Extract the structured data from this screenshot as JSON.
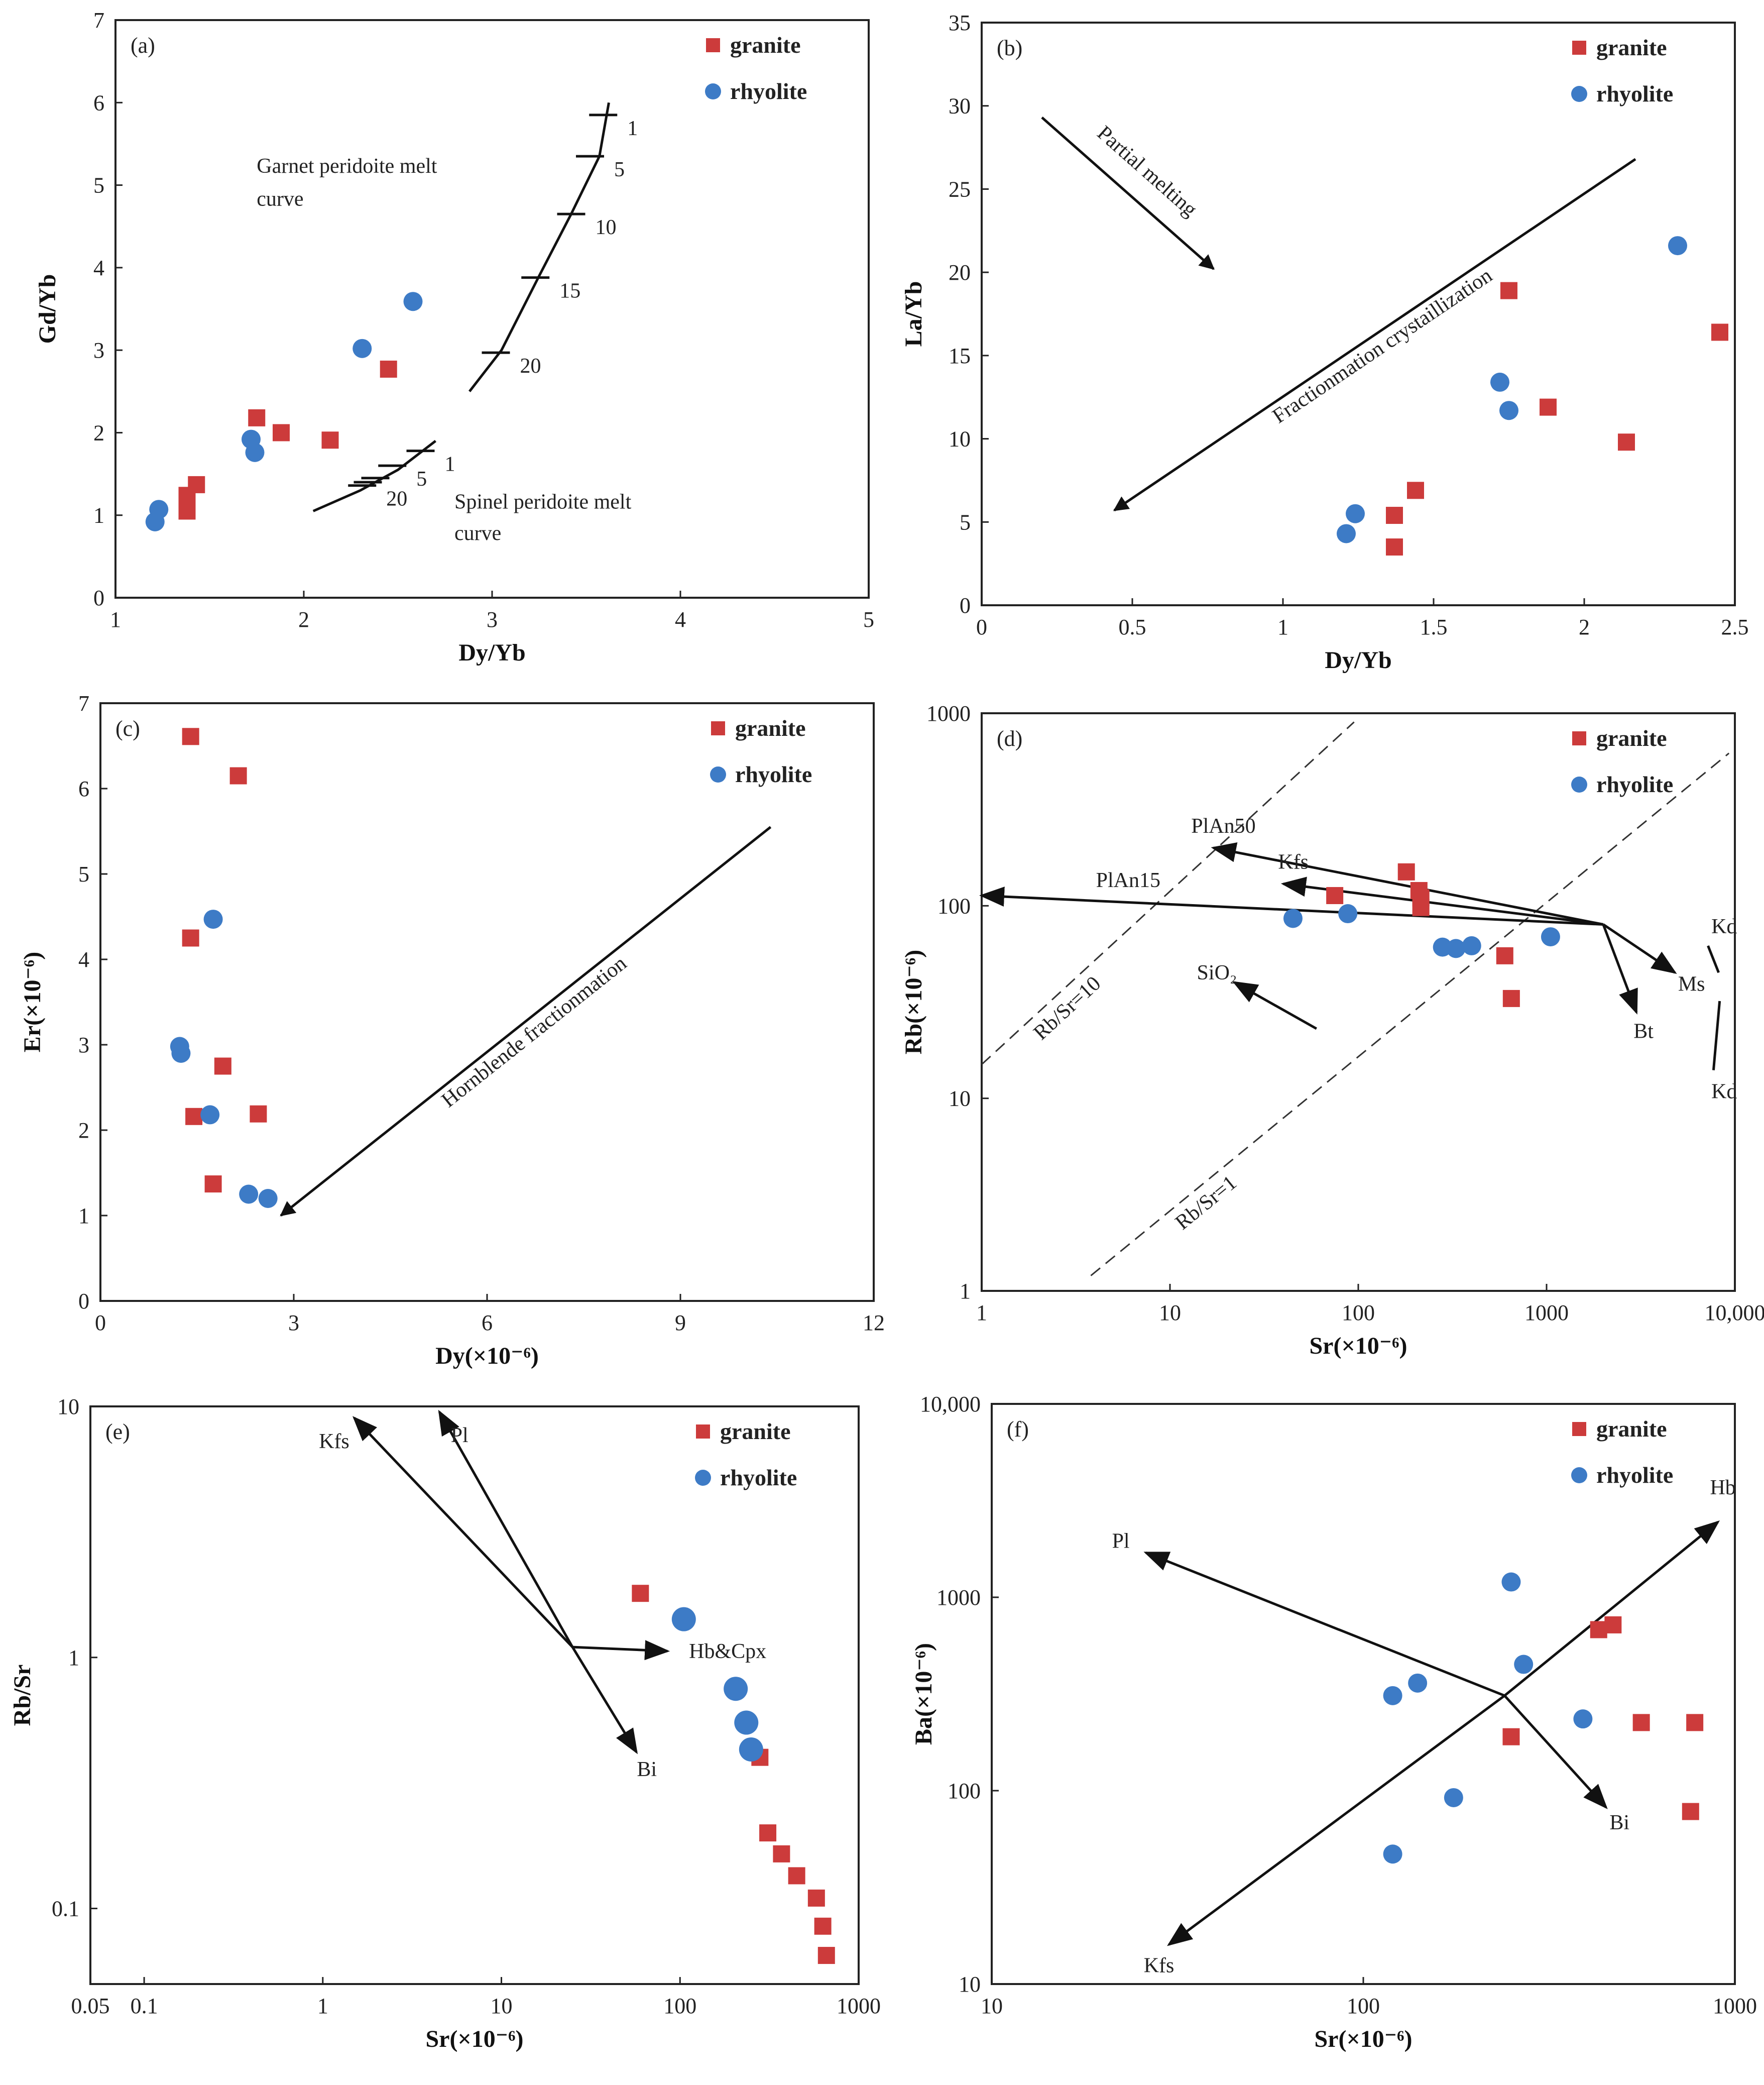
{
  "chart_data": [
    {
      "id": "a",
      "type": "scatter",
      "panel_label": "(a)",
      "xlabel": "Dy/Yb",
      "ylabel": "Gd/Yb",
      "xscale": "linear",
      "yscale": "linear",
      "xlim": [
        1,
        5
      ],
      "ylim": [
        0,
        7
      ],
      "xticks": [
        1,
        2,
        3,
        4,
        5
      ],
      "yticks": [
        0,
        1,
        2,
        3,
        4,
        5,
        6,
        7
      ],
      "legend_placement": "top-right",
      "series": [
        {
          "name": "granite",
          "marker": "square",
          "color": "#cc3b3b",
          "points": [
            [
              1.38,
              1.05
            ],
            [
              1.38,
              1.24
            ],
            [
              1.43,
              1.37
            ],
            [
              1.75,
              2.18
            ],
            [
              1.88,
              2.0
            ],
            [
              2.14,
              1.91
            ],
            [
              2.45,
              2.77
            ]
          ]
        },
        {
          "name": "rhyolite",
          "marker": "circle",
          "color": "#3d7bc6",
          "points": [
            [
              1.21,
              0.92
            ],
            [
              1.23,
              1.07
            ],
            [
              1.72,
              1.92
            ],
            [
              1.74,
              1.76
            ],
            [
              2.31,
              3.02
            ],
            [
              2.58,
              3.59
            ]
          ]
        }
      ],
      "curves": [
        {
          "points": [
            [
              2.88,
              2.5
            ],
            [
              3.05,
              3.0
            ],
            [
              3.25,
              3.9
            ],
            [
              3.42,
              4.65
            ],
            [
              3.57,
              5.35
            ],
            [
              3.62,
              6.0
            ]
          ],
          "ticks": [
            {
              "label": "1",
              "x": 3.59,
              "y": 5.85
            },
            {
              "label": "5",
              "x": 3.52,
              "y": 5.35
            },
            {
              "label": "10",
              "x": 3.42,
              "y": 4.65
            },
            {
              "label": "15",
              "x": 3.23,
              "y": 3.88
            },
            {
              "label": "20",
              "x": 3.02,
              "y": 2.97
            }
          ]
        },
        {
          "points": [
            [
              2.05,
              1.05
            ],
            [
              2.3,
              1.3
            ],
            [
              2.5,
              1.55
            ],
            [
              2.7,
              1.9
            ]
          ],
          "ticks": [
            {
              "label": "1",
              "x": 2.62,
              "y": 1.78
            },
            {
              "label": "5",
              "x": 2.47,
              "y": 1.6
            },
            {
              "label": "",
              "x": 2.38,
              "y": 1.45
            },
            {
              "label": "",
              "x": 2.34,
              "y": 1.4
            },
            {
              "label": "20",
              "x": 2.31,
              "y": 1.36
            }
          ]
        }
      ],
      "annotations": [
        {
          "text": "Garnet peridoite melt",
          "x": 1.75,
          "y": 5.15
        },
        {
          "text": "curve",
          "x": 1.75,
          "y": 4.75
        },
        {
          "text": "Spinel peridoite melt",
          "x": 2.8,
          "y": 1.08
        },
        {
          "text": "curve",
          "x": 2.8,
          "y": 0.7
        }
      ]
    },
    {
      "id": "b",
      "type": "scatter",
      "panel_label": "(b)",
      "xlabel": "Dy/Yb",
      "ylabel": "La/Yb",
      "xscale": "linear",
      "yscale": "linear",
      "xlim": [
        0,
        2.5
      ],
      "ylim": [
        0,
        35
      ],
      "xticks": [
        0,
        0.5,
        1,
        1.5,
        2,
        2.5
      ],
      "yticks": [
        0,
        5,
        10,
        15,
        20,
        25,
        30,
        35
      ],
      "legend_placement": "top-right",
      "series": [
        {
          "name": "granite",
          "marker": "square",
          "color": "#cc3b3b",
          "points": [
            [
              1.37,
              3.5
            ],
            [
              1.37,
              5.4
            ],
            [
              1.44,
              6.9
            ],
            [
              1.75,
              18.9
            ],
            [
              1.88,
              11.9
            ],
            [
              2.14,
              9.8
            ],
            [
              2.45,
              16.4
            ]
          ]
        },
        {
          "name": "rhyolite",
          "marker": "circle",
          "color": "#3d7bc6",
          "points": [
            [
              1.21,
              4.3
            ],
            [
              1.24,
              5.5
            ],
            [
              1.72,
              13.4
            ],
            [
              1.75,
              11.7
            ],
            [
              2.31,
              21.6
            ]
          ]
        }
      ],
      "arrows": [
        {
          "label": "Partial melting",
          "from": [
            0.2,
            29.3
          ],
          "to": [
            0.77,
            20.2
          ]
        },
        {
          "label": "Fractionmation  crystaillization",
          "from": [
            2.17,
            26.8
          ],
          "to": [
            0.44,
            5.7
          ]
        }
      ]
    },
    {
      "id": "c",
      "type": "scatter",
      "panel_label": "(c)",
      "xlabel": "Dy(×10⁻⁶)",
      "ylabel": "Er(×10⁻⁶)",
      "xscale": "linear",
      "yscale": "linear",
      "xlim": [
        0,
        12
      ],
      "ylim": [
        0,
        7
      ],
      "xticks": [
        0,
        3,
        6,
        9,
        12
      ],
      "yticks": [
        0,
        1,
        2,
        3,
        4,
        5,
        6,
        7
      ],
      "legend_placement": "top-right",
      "series": [
        {
          "name": "granite",
          "marker": "square",
          "color": "#cc3b3b",
          "points": [
            [
              1.4,
              6.61
            ],
            [
              2.14,
              6.15
            ],
            [
              1.4,
              4.25
            ],
            [
              1.9,
              2.75
            ],
            [
              1.45,
              2.16
            ],
            [
              2.45,
              2.19
            ],
            [
              1.75,
              1.37
            ]
          ]
        },
        {
          "name": "rhyolite",
          "marker": "circle",
          "color": "#3d7bc6",
          "points": [
            [
              1.75,
              4.47
            ],
            [
              1.23,
              2.98
            ],
            [
              1.25,
              2.9
            ],
            [
              1.7,
              2.18
            ],
            [
              2.3,
              1.25
            ],
            [
              2.6,
              1.2
            ]
          ]
        }
      ],
      "arrows": [
        {
          "label": "Hornblende  fractionmation",
          "from": [
            10.4,
            5.55
          ],
          "to": [
            2.8,
            1.0
          ]
        }
      ]
    },
    {
      "id": "d",
      "type": "scatter",
      "panel_label": "(d)",
      "xlabel": "Sr(×10⁻⁶)",
      "ylabel": "Rb(×10⁻⁶)",
      "xscale": "log",
      "yscale": "log",
      "xlim": [
        1,
        10000
      ],
      "ylim": [
        1,
        1000
      ],
      "xticks": [
        1,
        10,
        100,
        1000,
        10000
      ],
      "xticklabels": [
        "1",
        "10",
        "100",
        "1000",
        "10,000"
      ],
      "yticks": [
        1,
        10,
        100,
        1000
      ],
      "yticklabels": [
        "1",
        "10",
        "100",
        "1000"
      ],
      "legend_placement": "top-right",
      "series": [
        {
          "name": "granite",
          "marker": "square",
          "color": "#cc3b3b",
          "points": [
            [
              75,
              113
            ],
            [
              180,
              150
            ],
            [
              210,
              120
            ],
            [
              215,
              110
            ],
            [
              215,
              98
            ],
            [
              600,
              55
            ],
            [
              650,
              33
            ]
          ]
        },
        {
          "name": "rhyolite",
          "marker": "circle",
          "color": "#3d7bc6",
          "points": [
            [
              45,
              86
            ],
            [
              88,
              91
            ],
            [
              280,
              61
            ],
            [
              330,
              60
            ],
            [
              400,
              62
            ],
            [
              1050,
              69
            ]
          ]
        }
      ],
      "dashed_lines": [
        {
          "label": "Rb/Sr=10",
          "from": [
            1,
            15
          ],
          "to": [
            95,
            900
          ]
        },
        {
          "label": "Rb/Sr=1",
          "from": [
            3.8,
            1.2
          ],
          "to": [
            9300,
            620
          ]
        }
      ],
      "vectors": [
        {
          "label": "PlAn15",
          "from": [
            2000,
            80
          ],
          "to": [
            1,
            113
          ]
        },
        {
          "label": "PlAn50",
          "from": [
            2000,
            80
          ],
          "to": [
            17,
            200
          ]
        },
        {
          "label": "Kfs",
          "from": [
            2000,
            80
          ],
          "to": [
            40,
            130
          ]
        },
        {
          "label": "Ms",
          "from": [
            2000,
            80
          ],
          "to": [
            4800,
            45
          ]
        },
        {
          "label": "Bt",
          "from": [
            2000,
            80
          ],
          "to": [
            3000,
            28
          ]
        },
        {
          "label": "SiO₂",
          "from": [
            60,
            23
          ],
          "to": [
            22,
            40
          ]
        }
      ],
      "annotations": [
        {
          "text": "Kd",
          "x": 7500,
          "y": 72
        },
        {
          "text": "Kd",
          "x": 7500,
          "y": 10
        }
      ]
    },
    {
      "id": "e",
      "type": "scatter",
      "panel_label": "(e)",
      "xlabel": "Sr(×10⁻⁶)",
      "ylabel": "Rb/Sr",
      "xscale": "log",
      "yscale": "log",
      "xlim": [
        0.05,
        1000
      ],
      "ylim": [
        0.05,
        10
      ],
      "xticks": [
        0.05,
        0.1,
        1,
        10,
        100,
        1000
      ],
      "xticklabels": [
        "0.05",
        "0.1",
        "1",
        "10",
        "100",
        "1000"
      ],
      "yticks": [
        0.1,
        1,
        10
      ],
      "yticklabels": [
        "0.1",
        "1",
        "10"
      ],
      "legend_placement": "top-right",
      "series": [
        {
          "name": "granite",
          "marker": "square",
          "color": "#cc3b3b",
          "points": [
            [
              60,
              1.8
            ],
            [
              280,
              0.4
            ],
            [
              310,
              0.2
            ],
            [
              370,
              0.165
            ],
            [
              450,
              0.135
            ],
            [
              580,
              0.11
            ],
            [
              630,
              0.085
            ],
            [
              660,
              0.065
            ]
          ]
        },
        {
          "name": "rhyolite",
          "marker": "circle",
          "color": "#3d7bc6",
          "points": [
            [
              105,
              1.42
            ],
            [
              205,
              0.75
            ],
            [
              235,
              0.55
            ],
            [
              250,
              0.43
            ]
          ]
        }
      ],
      "vectors": [
        {
          "label": "Kfs",
          "from": [
            25,
            1.1
          ],
          "to": [
            1.5,
            9.0
          ]
        },
        {
          "label": "Pl",
          "from": [
            25,
            1.1
          ],
          "to": [
            4.5,
            9.5
          ]
        },
        {
          "label": "Hb&Cpx",
          "from": [
            25,
            1.1
          ],
          "to": [
            85,
            1.06
          ]
        },
        {
          "label": "Bi",
          "from": [
            25,
            1.1
          ],
          "to": [
            57,
            0.42
          ]
        }
      ]
    },
    {
      "id": "f",
      "type": "scatter",
      "panel_label": "(f)",
      "xlabel": "Sr(×10⁻⁶)",
      "ylabel": "Ba(×10⁻⁶)",
      "xscale": "log",
      "yscale": "log",
      "xlim": [
        10,
        1000
      ],
      "ylim": [
        10,
        10000
      ],
      "xticks": [
        10,
        100,
        1000
      ],
      "xticklabels": [
        "10",
        "100",
        "1000"
      ],
      "yticks": [
        10,
        100,
        1000,
        10000
      ],
      "yticklabels": [
        "10",
        "100",
        "1000",
        "10,000"
      ],
      "legend_placement": "top-right",
      "series": [
        {
          "name": "granite",
          "marker": "square",
          "color": "#cc3b3b",
          "points": [
            [
              250,
              190
            ],
            [
              430,
              680
            ],
            [
              470,
              720
            ],
            [
              560,
              225
            ],
            [
              780,
              225
            ],
            [
              760,
              78
            ]
          ]
        },
        {
          "name": "rhyolite",
          "marker": "circle",
          "color": "#3d7bc6",
          "points": [
            [
              120,
              47
            ],
            [
              120,
              310
            ],
            [
              140,
              360
            ],
            [
              175,
              92
            ],
            [
              250,
              1200
            ],
            [
              270,
              450
            ],
            [
              390,
              235
            ]
          ]
        }
      ],
      "vectors": [
        {
          "label": "Pl",
          "from": [
            240,
            310
          ],
          "to": [
            26,
            1700
          ]
        },
        {
          "label": "Bi",
          "from": [
            240,
            310
          ],
          "to": [
            450,
            82
          ]
        },
        {
          "label": "Hb",
          "from": [
            240,
            310
          ],
          "to": [
            900,
            2450
          ]
        },
        {
          "label": "Kfs",
          "from": [
            240,
            310
          ],
          "to": [
            30,
            16
          ]
        }
      ]
    }
  ]
}
